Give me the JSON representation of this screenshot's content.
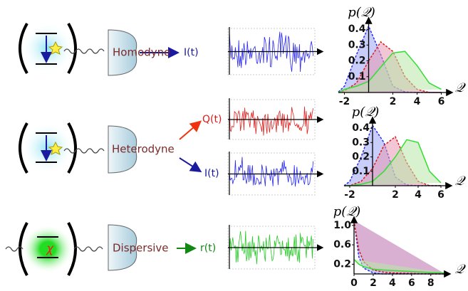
{
  "diagram": {
    "rows": [
      {
        "detector": "Homodyne",
        "signals": [
          "I(t)"
        ]
      },
      {
        "detector": "Heterodyne",
        "signals": [
          "Q(t)",
          "I(t)"
        ]
      },
      {
        "detector": "Dispersive",
        "signals": [
          "r(t)"
        ],
        "qubit": "χ"
      }
    ]
  },
  "chart_data": [
    {
      "type": "line",
      "ylabel": "p(𝒬)",
      "xlabel": "𝒬",
      "x": [
        -3,
        -2,
        -1,
        0,
        1,
        2,
        3,
        4,
        5,
        6
      ],
      "xlim": [
        -2.5,
        6.5
      ],
      "ylim": [
        0,
        0.45
      ],
      "xticks": [
        -2,
        2,
        4,
        6
      ],
      "yticks": [
        0.1,
        0.2,
        0.3,
        0.4
      ],
      "series": [
        {
          "color": "#2a2aee",
          "fill": "#9aa6f4",
          "dashed": true,
          "values": [
            0.003,
            0.04,
            0.24,
            0.42,
            0.24,
            0.04,
            0.003,
            0,
            0,
            0
          ]
        },
        {
          "color": "#dd1a1a",
          "fill": "#e898b0",
          "dashed": true,
          "values": [
            0,
            0.01,
            0.06,
            0.2,
            0.32,
            0.26,
            0.1,
            0.02,
            0,
            0
          ]
        },
        {
          "color": "#33dd33",
          "fill": "#b8e8a8",
          "dashed": false,
          "values": [
            0,
            0.02,
            0.04,
            0.07,
            0.16,
            0.25,
            0.26,
            0.17,
            0.06,
            0.02
          ]
        }
      ]
    },
    {
      "type": "line",
      "ylabel": "p(𝒬)",
      "xlabel": "𝒬",
      "x": [
        -3,
        -2,
        -1,
        0,
        1,
        2,
        3,
        4,
        5,
        6
      ],
      "xlim": [
        -2.5,
        6.5
      ],
      "ylim": [
        0,
        0.45
      ],
      "xticks": [
        -2,
        2,
        4,
        6
      ],
      "yticks": [
        0.1,
        0.2,
        0.3,
        0.4
      ],
      "series": [
        {
          "color": "#2a2aee",
          "fill": "#9aa6f4",
          "dashed": true,
          "values": [
            0,
            0.03,
            0.2,
            0.42,
            0.3,
            0.06,
            0.005,
            0,
            0,
            0
          ]
        },
        {
          "color": "#dd1a1a",
          "fill": "#e898b0",
          "dashed": true,
          "values": [
            0,
            0,
            0.03,
            0.12,
            0.28,
            0.34,
            0.16,
            0.03,
            0,
            0
          ]
        },
        {
          "color": "#33dd33",
          "fill": "#b8e8a8",
          "dashed": false,
          "values": [
            0,
            0,
            0.01,
            0.03,
            0.1,
            0.2,
            0.32,
            0.3,
            0.1,
            0.02
          ]
        }
      ]
    },
    {
      "type": "line",
      "ylabel": "p(𝒬)",
      "xlabel": "𝒬",
      "x": [
        0,
        0.5,
        1,
        2,
        3,
        4,
        6,
        8,
        9.5
      ],
      "xlim": [
        0,
        9.5
      ],
      "ylim": [
        0,
        1.1
      ],
      "xticks": [
        0,
        2,
        4,
        6,
        8
      ],
      "yticks": [
        0.2,
        0.6,
        {
          "value": 1,
          "label": "1.0"
        }
      ],
      "series": [
        {
          "color": "#2a2aee",
          "fill": "#9aa6f4",
          "dashed": true,
          "values": [
            1.1,
            0.35,
            0.12,
            0.02,
            0,
            0,
            0,
            0,
            0
          ]
        },
        {
          "color": "#dd1a1a",
          "fill": "#e898b0",
          "dashed": true,
          "values": [
            1.1,
            0.5,
            0.25,
            0.08,
            0.04,
            0.02,
            0.01,
            0,
            0
          ]
        },
        {
          "color": "#33dd33",
          "fill": "#b8e8a8",
          "dashed": false,
          "values": [
            0.3,
            0.2,
            0.15,
            0.1,
            0.08,
            0.07,
            0.05,
            0.03,
            0.02
          ]
        }
      ]
    }
  ]
}
